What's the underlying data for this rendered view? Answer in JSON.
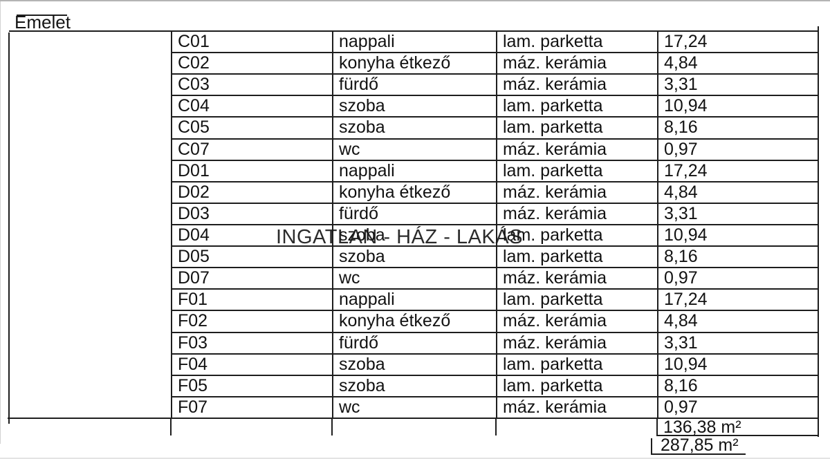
{
  "page": {
    "title": "Emelet",
    "watermark": "INGATLAN - HÁZ - LAKÁS"
  },
  "table": {
    "column_keys": [
      "code",
      "room",
      "floor",
      "area"
    ],
    "rows": [
      {
        "code": "C01",
        "room": "nappali",
        "floor": "lam. parketta",
        "area": "17,24"
      },
      {
        "code": "C02",
        "room": "konyha étkező",
        "floor": "máz. kerámia",
        "area": "4,84"
      },
      {
        "code": "C03",
        "room": "fürdő",
        "floor": "máz. kerámia",
        "area": "3,31"
      },
      {
        "code": "C04",
        "room": "szoba",
        "floor": "lam. parketta",
        "area": "10,94"
      },
      {
        "code": "C05",
        "room": "szoba",
        "floor": "lam. parketta",
        "area": "8,16"
      },
      {
        "code": "C07",
        "room": "wc",
        "floor": "máz. kerámia",
        "area": "0,97"
      },
      {
        "code": "D01",
        "room": "nappali",
        "floor": "lam. parketta",
        "area": "17,24"
      },
      {
        "code": "D02",
        "room": "konyha étkező",
        "floor": "máz. kerámia",
        "area": "4,84"
      },
      {
        "code": "D03",
        "room": "fürdő",
        "floor": "máz. kerámia",
        "area": "3,31"
      },
      {
        "code": "D04",
        "room": "szoba",
        "floor": "lam. parketta",
        "area": "10,94"
      },
      {
        "code": "D05",
        "room": "szoba",
        "floor": "lam. parketta",
        "area": "8,16"
      },
      {
        "code": "D07",
        "room": "wc",
        "floor": "máz. kerámia",
        "area": "0,97"
      },
      {
        "code": "F01",
        "room": "nappali",
        "floor": "lam. parketta",
        "area": "17,24"
      },
      {
        "code": "F02",
        "room": "konyha étkező",
        "floor": "máz. kerámia",
        "area": "4,84"
      },
      {
        "code": "F03",
        "room": "fürdő",
        "floor": "máz. kerámia",
        "area": "3,31"
      },
      {
        "code": "F04",
        "room": "szoba",
        "floor": "lam. parketta",
        "area": "10,94"
      },
      {
        "code": "F05",
        "room": "szoba",
        "floor": "lam. parketta",
        "area": "8,16"
      },
      {
        "code": "F07",
        "room": "wc",
        "floor": "máz. kerámia",
        "area": "0,97"
      }
    ],
    "totals": {
      "subtotal": "136,38 m²",
      "total": "287,85 m²"
    }
  },
  "colors": {
    "line": "#1d1d1d",
    "text": "#121212",
    "frame": "#b4b4b4"
  }
}
